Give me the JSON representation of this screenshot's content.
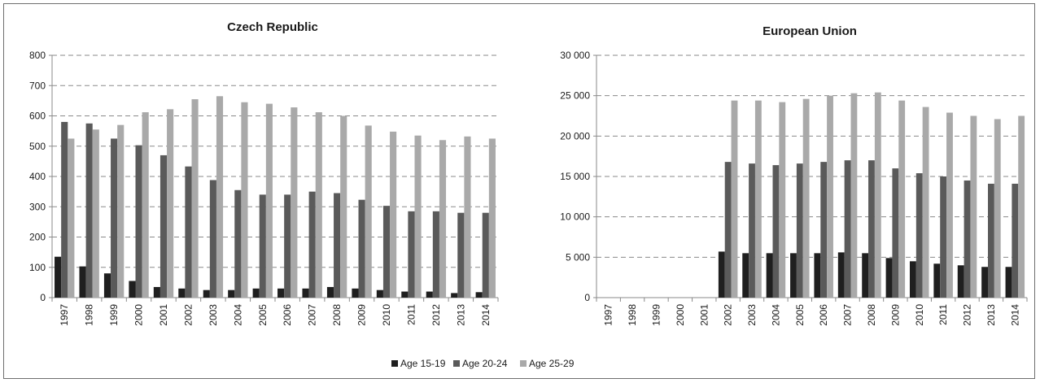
{
  "legend": [
    {
      "name": "Age 15-19",
      "color": "#1f1f1f"
    },
    {
      "name": "Age 20-24",
      "color": "#5a5a5a"
    },
    {
      "name": "Age 25-29",
      "color": "#a9a9a9"
    }
  ],
  "chart_data": [
    {
      "type": "bar",
      "title": "Czech Republic",
      "xlabel": "",
      "ylabel": "",
      "ylim": [
        0,
        800
      ],
      "yticks": [
        0,
        100,
        200,
        300,
        400,
        500,
        600,
        700,
        800
      ],
      "ytick_labels": [
        "0",
        "100",
        "200",
        "300",
        "400",
        "500",
        "600",
        "700",
        "800"
      ],
      "grid": true,
      "legend_position": "bottom",
      "categories": [
        "1997",
        "1998",
        "1999",
        "2000",
        "2001",
        "2002",
        "2003",
        "2004",
        "2005",
        "2006",
        "2007",
        "2008",
        "2009",
        "2010",
        "2011",
        "2012",
        "2013",
        "2014"
      ],
      "series": [
        {
          "name": "Age 15-19",
          "color": "#1f1f1f",
          "values": [
            135,
            103,
            80,
            55,
            35,
            30,
            25,
            25,
            30,
            30,
            30,
            35,
            30,
            25,
            20,
            20,
            15,
            18
          ]
        },
        {
          "name": "Age 20-24",
          "color": "#5a5a5a",
          "values": [
            580,
            575,
            525,
            503,
            470,
            433,
            388,
            355,
            340,
            340,
            350,
            345,
            323,
            303,
            285,
            285,
            280,
            280
          ]
        },
        {
          "name": "Age 25-29",
          "color": "#a9a9a9",
          "values": [
            525,
            555,
            570,
            612,
            622,
            655,
            665,
            645,
            640,
            628,
            612,
            600,
            568,
            548,
            535,
            520,
            532,
            525
          ]
        }
      ]
    },
    {
      "type": "bar",
      "title": "European Union",
      "xlabel": "",
      "ylabel": "",
      "ylim": [
        0,
        30000
      ],
      "yticks": [
        0,
        5000,
        10000,
        15000,
        20000,
        25000,
        30000
      ],
      "ytick_labels": [
        "0",
        "5 000",
        "10 000",
        "15 000",
        "20 000",
        "25 000",
        "30 000"
      ],
      "grid": true,
      "legend_position": "bottom",
      "categories": [
        "1997",
        "1998",
        "1999",
        "2000",
        "2001",
        "2002",
        "2003",
        "2004",
        "2005",
        "2006",
        "2007",
        "2008",
        "2009",
        "2010",
        "2011",
        "2012",
        "2013",
        "2014"
      ],
      "series": [
        {
          "name": "Age 15-19",
          "color": "#1f1f1f",
          "values": [
            0,
            0,
            0,
            0,
            0,
            5700,
            5500,
            5500,
            5500,
            5500,
            5600,
            5500,
            4900,
            4500,
            4200,
            4000,
            3800,
            3800
          ]
        },
        {
          "name": "Age 20-24",
          "color": "#5a5a5a",
          "values": [
            0,
            0,
            0,
            0,
            0,
            16800,
            16600,
            16400,
            16600,
            16800,
            17000,
            17000,
            16000,
            15400,
            15000,
            14500,
            14100,
            14100
          ]
        },
        {
          "name": "Age 25-29",
          "color": "#a9a9a9",
          "values": [
            0,
            0,
            0,
            0,
            0,
            24400,
            24400,
            24200,
            24600,
            25000,
            25300,
            25400,
            24400,
            23600,
            22900,
            22500,
            22100,
            22500
          ]
        }
      ]
    }
  ]
}
